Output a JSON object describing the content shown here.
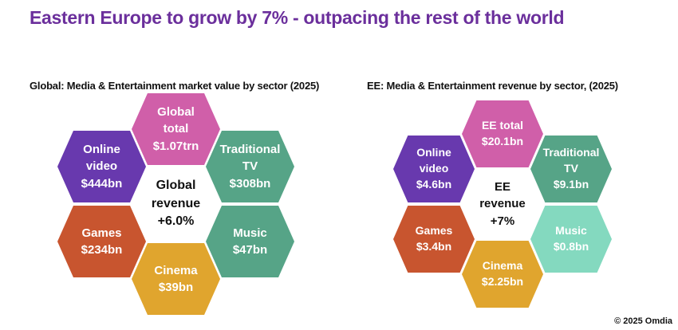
{
  "page": {
    "title": "Eastern Europe to grow by 7% - outpacing the rest of the world",
    "copyright": "© 2025 Omdia"
  },
  "colors": {
    "title_purple": "#6b2f9c",
    "pink": "#d05fa9",
    "purple": "#6839ae",
    "teal": "#56a487",
    "orange": "#c8552f",
    "yellow": "#e0a52e",
    "mint": "#84d9bf",
    "hex_text": "#ffffff",
    "center_text": "#111111"
  },
  "chart_data": [
    {
      "type": "hex-cluster",
      "title": "Global: Media & Entertainment market value by sector (2025)",
      "center_label": [
        "Global",
        "revenue",
        "+6.0%"
      ],
      "sectors": [
        {
          "name": "Global total",
          "value": "$1.07trn",
          "lines": [
            "Global",
            "total",
            "$1.07trn"
          ],
          "color": "pink",
          "position": "top"
        },
        {
          "name": "Online video",
          "value": "$444bn",
          "lines": [
            "Online",
            "video",
            "$444bn"
          ],
          "color": "purple",
          "position": "upper-left"
        },
        {
          "name": "Traditional TV",
          "value": "$308bn",
          "lines": [
            "Traditional",
            "TV",
            "$308bn"
          ],
          "color": "teal",
          "position": "upper-right"
        },
        {
          "name": "Games",
          "value": "$234bn",
          "lines": [
            "Games",
            "$234bn"
          ],
          "color": "orange",
          "position": "lower-left"
        },
        {
          "name": "Music",
          "value": "$47bn",
          "lines": [
            "Music",
            "$47bn"
          ],
          "color": "teal",
          "position": "lower-right"
        },
        {
          "name": "Cinema",
          "value": "$39bn",
          "lines": [
            "Cinema",
            "$39bn"
          ],
          "color": "yellow",
          "position": "bottom"
        }
      ]
    },
    {
      "type": "hex-cluster",
      "title": "EE: Media & Entertainment revenue by sector, (2025)",
      "center_label": [
        "EE",
        "revenue",
        "+7%"
      ],
      "sectors": [
        {
          "name": "EE total",
          "value": "$20.1bn",
          "lines": [
            "EE total",
            "$20.1bn"
          ],
          "color": "pink",
          "position": "top"
        },
        {
          "name": "Online video",
          "value": "$4.6bn",
          "lines": [
            "Online",
            "video",
            "$4.6bn"
          ],
          "color": "purple",
          "position": "upper-left"
        },
        {
          "name": "Traditional TV",
          "value": "$9.1bn",
          "lines": [
            "Traditional",
            "TV",
            "$9.1bn"
          ],
          "color": "teal",
          "position": "upper-right"
        },
        {
          "name": "Games",
          "value": "$3.4bn",
          "lines": [
            "Games",
            "$3.4bn"
          ],
          "color": "orange",
          "position": "lower-left"
        },
        {
          "name": "Music",
          "value": "$0.8bn",
          "lines": [
            "Music",
            "$0.8bn"
          ],
          "color": "mint",
          "position": "lower-right"
        },
        {
          "name": "Cinema",
          "value": "$2.25bn",
          "lines": [
            "Cinema",
            "$2.25bn"
          ],
          "color": "yellow",
          "position": "bottom"
        }
      ]
    }
  ]
}
